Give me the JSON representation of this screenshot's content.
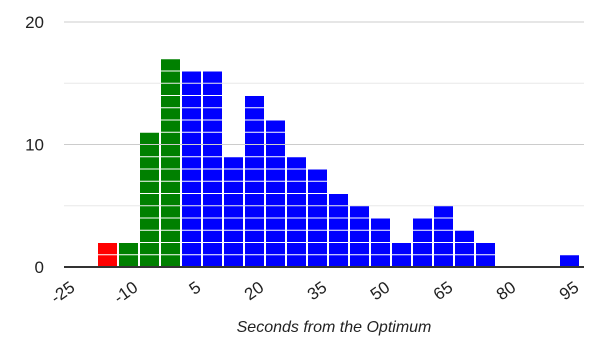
{
  "chart_data": {
    "type": "bar",
    "title": "",
    "xlabel": "Seconds from the Optimum",
    "ylabel": "",
    "bin_width": 5,
    "xlim": [
      -25,
      100
    ],
    "ylim": [
      0,
      20
    ],
    "y_ticks": [
      "0",
      "10",
      "20"
    ],
    "x_ticks": [
      "-25",
      "-10",
      "5",
      "20",
      "35",
      "50",
      "65",
      "80",
      "95"
    ],
    "x_tick_values": [
      -25,
      -10,
      5,
      20,
      35,
      50,
      65,
      80,
      95
    ],
    "y_tick_values": [
      0,
      10,
      20
    ],
    "grid": true,
    "unit_stacked_blocks": true,
    "colors": {
      "red": "#ff0000",
      "green": "#008000",
      "blue": "#0000ff",
      "grid": "#cccccc",
      "axis": "#333333"
    },
    "bins": [
      {
        "start": -20,
        "value": 2,
        "color": "red"
      },
      {
        "start": -15,
        "value": 2,
        "color": "green"
      },
      {
        "start": -10,
        "value": 11,
        "color": "green"
      },
      {
        "start": -5,
        "value": 17,
        "color": "green"
      },
      {
        "start": 0,
        "value": 16,
        "color": "blue"
      },
      {
        "start": 5,
        "value": 16,
        "color": "blue"
      },
      {
        "start": 10,
        "value": 9,
        "color": "blue"
      },
      {
        "start": 15,
        "value": 14,
        "color": "blue"
      },
      {
        "start": 20,
        "value": 12,
        "color": "blue"
      },
      {
        "start": 25,
        "value": 9,
        "color": "blue"
      },
      {
        "start": 30,
        "value": 8,
        "color": "blue"
      },
      {
        "start": 35,
        "value": 6,
        "color": "blue"
      },
      {
        "start": 40,
        "value": 5,
        "color": "blue"
      },
      {
        "start": 45,
        "value": 4,
        "color": "blue"
      },
      {
        "start": 50,
        "value": 2,
        "color": "blue"
      },
      {
        "start": 55,
        "value": 4,
        "color": "blue"
      },
      {
        "start": 60,
        "value": 5,
        "color": "blue"
      },
      {
        "start": 65,
        "value": 3,
        "color": "blue"
      },
      {
        "start": 70,
        "value": 2,
        "color": "blue"
      },
      {
        "start": 90,
        "value": 1,
        "color": "blue"
      }
    ]
  }
}
